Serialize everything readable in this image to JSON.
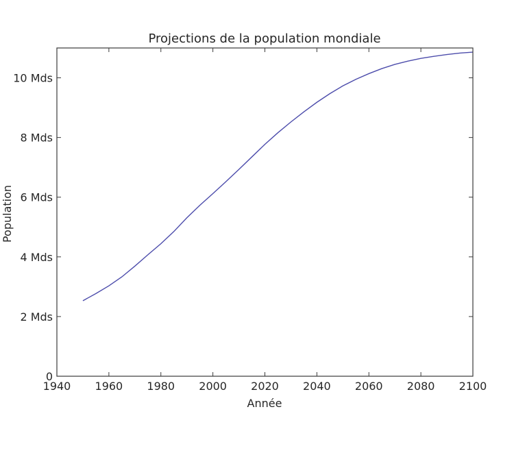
{
  "chart_data": {
    "type": "line",
    "title": "Projections de la population mondiale",
    "xlabel": "Année",
    "ylabel": "Population",
    "xlim": [
      1940,
      2100
    ],
    "ylim": [
      0,
      11
    ],
    "x_ticks": [
      1940,
      1960,
      1980,
      2000,
      2020,
      2040,
      2060,
      2080,
      2100
    ],
    "x_tick_labels": [
      "1940",
      "1960",
      "1980",
      "2000",
      "2020",
      "2040",
      "2060",
      "2080",
      "2100"
    ],
    "y_ticks": [
      0,
      2,
      4,
      6,
      8,
      10
    ],
    "y_tick_labels": [
      "0",
      "2 Mds",
      "4 Mds",
      "6 Mds",
      "8 Mds",
      "10 Mds"
    ],
    "grid": false,
    "line_color": "#4c4cab",
    "series": [
      {
        "x": [
          1950,
          1955,
          1960,
          1965,
          1970,
          1975,
          1980,
          1985,
          1990,
          1995,
          2000,
          2005,
          2010,
          2015,
          2020,
          2025,
          2030,
          2035,
          2040,
          2045,
          2050,
          2055,
          2060,
          2065,
          2070,
          2075,
          2080,
          2085,
          2090,
          2095,
          2100
        ],
        "y": [
          2.53,
          2.77,
          3.03,
          3.33,
          3.69,
          4.07,
          4.44,
          4.85,
          5.31,
          5.73,
          6.12,
          6.52,
          6.93,
          7.35,
          7.77,
          8.16,
          8.52,
          8.86,
          9.18,
          9.47,
          9.73,
          9.95,
          10.14,
          10.31,
          10.45,
          10.56,
          10.65,
          10.72,
          10.78,
          10.83,
          10.86
        ]
      }
    ]
  }
}
